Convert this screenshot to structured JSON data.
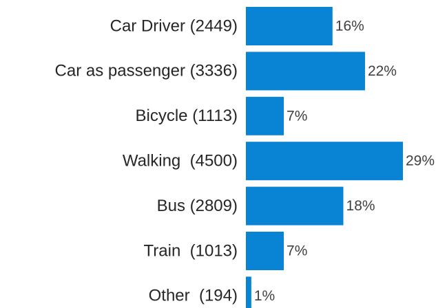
{
  "chart_data": {
    "type": "bar",
    "orientation": "horizontal",
    "categories": [
      "Car Driver (2449)",
      "Car as passenger (3336)",
      "Bicycle (1113)",
      "Walking  (4500)",
      "Bus (2809)",
      "Train  (1013)",
      "Other  (194)"
    ],
    "values": [
      16,
      22,
      7,
      29,
      18,
      7,
      1
    ],
    "value_labels": [
      "16%",
      "22%",
      "7%",
      "29%",
      "18%",
      "7%",
      "1%"
    ],
    "color": "#0984d4"
  }
}
